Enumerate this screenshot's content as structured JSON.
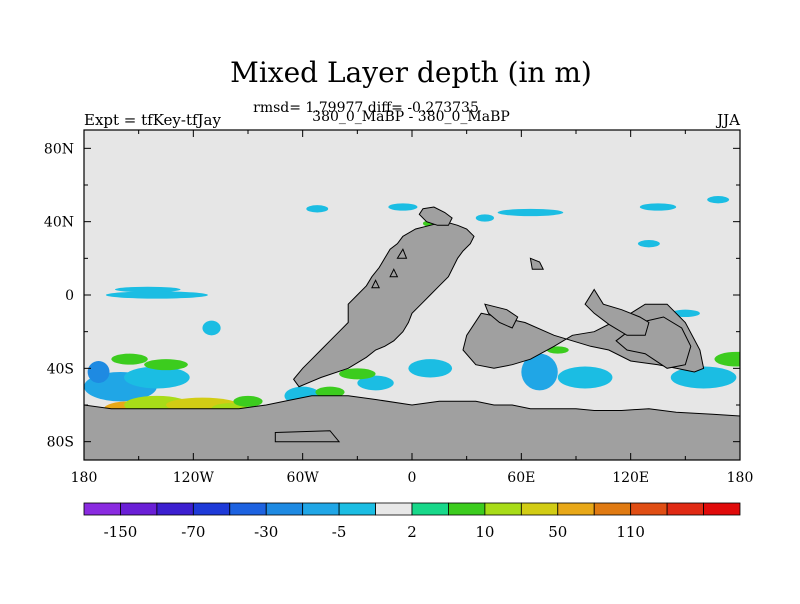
{
  "chart_data": {
    "type": "heatmap",
    "title": "Mixed Layer depth (in m)",
    "subtitle": "rmsd= 1.79977 diff= -0.273735",
    "left_label": "Expt = tfKey-tfJay",
    "center_label": "380_0_MaBP - 380_0_MaBP",
    "right_label": "JJA",
    "x_axis": {
      "range": [
        -180,
        180
      ],
      "ticks": [
        -180,
        -120,
        -60,
        0,
        60,
        120,
        180
      ],
      "tick_labels": [
        "180",
        "120W",
        "60W",
        "0",
        "60E",
        "120E",
        "180"
      ]
    },
    "y_axis": {
      "range": [
        -90,
        90
      ],
      "ticks": [
        80,
        40,
        0,
        -40,
        -80
      ],
      "tick_labels": [
        "80N",
        "40N",
        "0",
        "40S",
        "80S"
      ]
    },
    "colorbar": {
      "colors": [
        "#8a2be0",
        "#6a1fd6",
        "#3c1fd0",
        "#1e3ad8",
        "#1d62e0",
        "#1e8ae2",
        "#20a6e6",
        "#1bbde3",
        "#e8e8e8",
        "#18d88a",
        "#3ccc1e",
        "#a8dc18",
        "#d2cc14",
        "#e8a818",
        "#e07a12",
        "#e04e14",
        "#e02a14",
        "#e00a0a"
      ],
      "labels": [
        "-150",
        "-70",
        "-30",
        "-5",
        "2",
        "10",
        "50",
        "110"
      ],
      "label_positions": [
        1,
        3,
        5,
        7,
        9,
        11,
        13,
        15
      ]
    },
    "background_color": "#e6e6e6",
    "land_color": "#a0a0a0",
    "land_polygons": [
      [
        [
          -135,
          -62
        ],
        [
          -110,
          -62
        ],
        [
          -95,
          -62
        ],
        [
          -80,
          -60
        ],
        [
          -70,
          -58
        ],
        [
          -55,
          -55
        ],
        [
          -35,
          -55
        ],
        [
          -20,
          -57
        ],
        [
          0,
          -60
        ],
        [
          15,
          -58
        ],
        [
          35,
          -58
        ],
        [
          45,
          -60
        ],
        [
          55,
          -60
        ],
        [
          65,
          -62
        ],
        [
          90,
          -62
        ],
        [
          100,
          -63
        ],
        [
          115,
          -63
        ],
        [
          130,
          -62
        ],
        [
          145,
          -64
        ],
        [
          165,
          -65
        ],
        [
          180,
          -66
        ],
        [
          180,
          -90
        ],
        [
          -180,
          -90
        ],
        [
          -180,
          -60
        ],
        [
          -165,
          -62
        ],
        [
          -150,
          -62
        ]
      ],
      [
        [
          -75,
          -75
        ],
        [
          -45,
          -74
        ],
        [
          -40,
          -80
        ],
        [
          -75,
          -80
        ]
      ],
      [
        [
          -5,
          32
        ],
        [
          2,
          36
        ],
        [
          10,
          38
        ],
        [
          18,
          40
        ],
        [
          25,
          38
        ],
        [
          30,
          36
        ],
        [
          34,
          32
        ],
        [
          32,
          28
        ],
        [
          28,
          24
        ],
        [
          25,
          20
        ],
        [
          20,
          10
        ],
        [
          15,
          5
        ],
        [
          10,
          0
        ],
        [
          5,
          -5
        ],
        [
          0,
          -10
        ],
        [
          -2,
          -15
        ],
        [
          -5,
          -20
        ],
        [
          -10,
          -25
        ],
        [
          -15,
          -28
        ],
        [
          -20,
          -30
        ],
        [
          -25,
          -34
        ],
        [
          -30,
          -37
        ],
        [
          -35,
          -40
        ],
        [
          -50,
          -45
        ],
        [
          -62,
          -50
        ],
        [
          -65,
          -46
        ],
        [
          -60,
          -40
        ],
        [
          -55,
          -35
        ],
        [
          -50,
          -30
        ],
        [
          -45,
          -25
        ],
        [
          -40,
          -20
        ],
        [
          -35,
          -15
        ],
        [
          -35,
          -5
        ],
        [
          -30,
          0
        ],
        [
          -25,
          5
        ],
        [
          -22,
          10
        ],
        [
          -18,
          15
        ],
        [
          -15,
          20
        ],
        [
          -12,
          25
        ],
        [
          -8,
          28
        ]
      ],
      [
        [
          6,
          47
        ],
        [
          12,
          48
        ],
        [
          18,
          45
        ],
        [
          22,
          42
        ],
        [
          20,
          38
        ],
        [
          14,
          38
        ],
        [
          8,
          40
        ],
        [
          4,
          44
        ]
      ],
      [
        [
          38,
          -10
        ],
        [
          48,
          -12
        ],
        [
          62,
          -15
        ],
        [
          78,
          -22
        ],
        [
          98,
          -28
        ],
        [
          108,
          -30
        ],
        [
          120,
          -36
        ],
        [
          135,
          -38
        ],
        [
          145,
          -40
        ],
        [
          155,
          -42
        ],
        [
          160,
          -40
        ],
        [
          158,
          -30
        ],
        [
          150,
          -15
        ],
        [
          140,
          -5
        ],
        [
          128,
          -5
        ],
        [
          120,
          -10
        ],
        [
          110,
          -15
        ],
        [
          100,
          -20
        ],
        [
          88,
          -22
        ],
        [
          78,
          -28
        ],
        [
          65,
          -35
        ],
        [
          55,
          -38
        ],
        [
          45,
          -40
        ],
        [
          35,
          -38
        ],
        [
          28,
          -30
        ],
        [
          30,
          -22
        ]
      ],
      [
        [
          112,
          -25
        ],
        [
          125,
          -15
        ],
        [
          138,
          -12
        ],
        [
          148,
          -18
        ],
        [
          153,
          -28
        ],
        [
          150,
          -38
        ],
        [
          140,
          -40
        ],
        [
          128,
          -32
        ],
        [
          118,
          -30
        ]
      ],
      [
        [
          100,
          3
        ],
        [
          105,
          -5
        ],
        [
          115,
          -8
        ],
        [
          125,
          -12
        ],
        [
          130,
          -15
        ],
        [
          128,
          -22
        ],
        [
          118,
          -22
        ],
        [
          108,
          -16
        ],
        [
          100,
          -10
        ],
        [
          95,
          -5
        ]
      ],
      [
        [
          40,
          -5
        ],
        [
          52,
          -8
        ],
        [
          58,
          -12
        ],
        [
          55,
          -18
        ],
        [
          48,
          -15
        ],
        [
          42,
          -10
        ]
      ],
      [
        [
          65,
          20
        ],
        [
          70,
          18
        ],
        [
          72,
          14
        ],
        [
          66,
          14
        ]
      ],
      [
        [
          -5,
          25
        ],
        [
          -3,
          20
        ],
        [
          -8,
          20
        ]
      ],
      [
        [
          -10,
          14
        ],
        [
          -8,
          10
        ],
        [
          -12,
          10
        ]
      ],
      [
        [
          -20,
          8
        ],
        [
          -18,
          4
        ],
        [
          -22,
          4
        ]
      ]
    ],
    "positive_shading": [
      {
        "lon": -155,
        "lat": -62,
        "rx": 14,
        "ry": 4,
        "level": 13
      },
      {
        "lon": -140,
        "lat": -60,
        "rx": 18,
        "ry": 5,
        "level": 11
      },
      {
        "lon": -115,
        "lat": -60,
        "rx": 20,
        "ry": 4,
        "level": 12
      },
      {
        "lon": -100,
        "lat": -62,
        "rx": 10,
        "ry": 3,
        "level": 11
      },
      {
        "lon": -30,
        "lat": -43,
        "rx": 10,
        "ry": 3,
        "level": 10
      },
      {
        "lon": -45,
        "lat": -53,
        "rx": 8,
        "ry": 3,
        "level": 10
      },
      {
        "lon": -155,
        "lat": -35,
        "rx": 10,
        "ry": 3,
        "level": 10
      },
      {
        "lon": -135,
        "lat": -38,
        "rx": 12,
        "ry": 3,
        "level": 10
      },
      {
        "lon": 12,
        "lat": 39,
        "rx": 6,
        "ry": 2,
        "level": 10
      },
      {
        "lon": 80,
        "lat": -30,
        "rx": 6,
        "ry": 2,
        "level": 10
      },
      {
        "lon": 130,
        "lat": -23,
        "rx": 6,
        "ry": 2,
        "level": 10
      },
      {
        "lon": 178,
        "lat": -35,
        "rx": 12,
        "ry": 4,
        "level": 10
      },
      {
        "lon": -90,
        "lat": -58,
        "rx": 8,
        "ry": 3,
        "level": 10
      }
    ],
    "negative_shading": [
      {
        "lon": -160,
        "lat": -50,
        "rx": 20,
        "ry": 8,
        "level": 6
      },
      {
        "lon": -140,
        "lat": -45,
        "rx": 18,
        "ry": 6,
        "level": 7
      },
      {
        "lon": -165,
        "lat": -78,
        "rx": 14,
        "ry": 5,
        "level": 7
      },
      {
        "lon": -135,
        "lat": -75,
        "rx": 25,
        "ry": 4,
        "level": 7
      },
      {
        "lon": -110,
        "lat": -72,
        "rx": 14,
        "ry": 3,
        "level": 7
      },
      {
        "lon": -90,
        "lat": -68,
        "rx": 10,
        "ry": 3,
        "level": 7
      },
      {
        "lon": -60,
        "lat": -55,
        "rx": 10,
        "ry": 5,
        "level": 7
      },
      {
        "lon": -20,
        "lat": -48,
        "rx": 10,
        "ry": 4,
        "level": 7
      },
      {
        "lon": 10,
        "lat": -40,
        "rx": 12,
        "ry": 5,
        "level": 7
      },
      {
        "lon": 70,
        "lat": -42,
        "rx": 10,
        "ry": 10,
        "level": 6
      },
      {
        "lon": 95,
        "lat": -45,
        "rx": 15,
        "ry": 6,
        "level": 7
      },
      {
        "lon": 160,
        "lat": -45,
        "rx": 18,
        "ry": 6,
        "level": 7
      },
      {
        "lon": 170,
        "lat": -72,
        "rx": 15,
        "ry": 4,
        "level": 7
      },
      {
        "lon": -140,
        "lat": 0,
        "rx": 28,
        "ry": 2,
        "level": 7
      },
      {
        "lon": -145,
        "lat": 3,
        "rx": 18,
        "ry": 1.5,
        "level": 7
      },
      {
        "lon": -110,
        "lat": -18,
        "rx": 5,
        "ry": 4,
        "level": 7
      },
      {
        "lon": -52,
        "lat": 47,
        "rx": 6,
        "ry": 2,
        "level": 7
      },
      {
        "lon": -5,
        "lat": 48,
        "rx": 8,
        "ry": 2,
        "level": 7
      },
      {
        "lon": 65,
        "lat": 45,
        "rx": 18,
        "ry": 2,
        "level": 7
      },
      {
        "lon": 135,
        "lat": 48,
        "rx": 10,
        "ry": 2,
        "level": 7
      },
      {
        "lon": 168,
        "lat": 52,
        "rx": 6,
        "ry": 2,
        "level": 7
      },
      {
        "lon": 130,
        "lat": 28,
        "rx": 6,
        "ry": 2,
        "level": 7
      },
      {
        "lon": 40,
        "lat": 42,
        "rx": 5,
        "ry": 2,
        "level": 7
      },
      {
        "lon": -30,
        "lat": -30,
        "rx": 6,
        "ry": 2,
        "level": 7
      },
      {
        "lon": 40,
        "lat": -25,
        "rx": 8,
        "ry": 2,
        "level": 7
      },
      {
        "lon": 60,
        "lat": -25,
        "rx": 6,
        "ry": 2,
        "level": 7
      },
      {
        "lon": 110,
        "lat": -27,
        "rx": 6,
        "ry": 2,
        "level": 7
      },
      {
        "lon": 150,
        "lat": -10,
        "rx": 8,
        "ry": 2,
        "level": 7
      },
      {
        "lon": -172,
        "lat": -42,
        "rx": 6,
        "ry": 6,
        "level": 5
      }
    ]
  }
}
